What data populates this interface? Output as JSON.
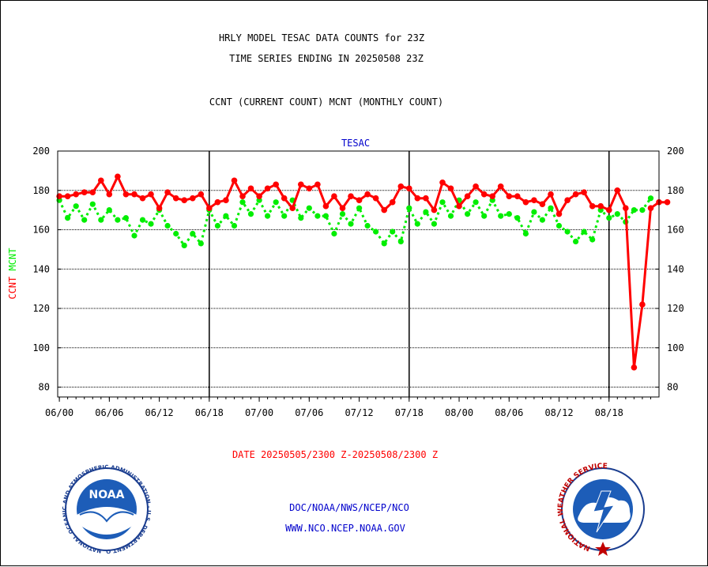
{
  "header": {
    "title_line1": "HRLY MODEL TESAC DATA COUNTS for 23Z",
    "title_line2": "TIME SERIES ENDING IN 20250508 23Z",
    "subtitle": "CCNT (CURRENT COUNT) MCNT (MONTHLY COUNT)"
  },
  "footer": {
    "date_range": "DATE 20250505/2300 Z-20250508/2300 Z",
    "org_line": "DOC/NOAA/NWS/NCEP/NCO",
    "url_line": "WWW.NCO.NCEP.NOAA.GOV",
    "noaa_logo_text": "NOAA",
    "noaa_ring_text": "NATIONAL OCEANIC AND ATMOSPHERIC ADMINISTRATION · U.S. DEPARTMENT OF COMMERCE",
    "nws_ring_text": "NATIONAL WEATHER SERVICE"
  },
  "colors": {
    "ccnt": "#ff0000",
    "mcnt": "#00ee00",
    "title": "#000000",
    "label_blue": "#0000cc",
    "date_red": "#ff0000"
  },
  "chart_data": {
    "type": "line",
    "title": "TESAC",
    "ylabel_ccnt": "CCNT",
    "ylabel_mcnt": "MCNT",
    "ylim": [
      75,
      200
    ],
    "yticks": [
      80,
      100,
      120,
      140,
      160,
      180,
      200
    ],
    "x_tick_labels": [
      "06/00",
      "06/06",
      "06/12",
      "06/18",
      "07/00",
      "07/06",
      "07/12",
      "07/18",
      "08/00",
      "08/06",
      "08/12",
      "08/18"
    ],
    "x_tick_hours": [
      0,
      6,
      12,
      18,
      24,
      30,
      36,
      42,
      48,
      54,
      60,
      66
    ],
    "day_separators_hours": [
      18,
      42,
      66
    ],
    "grid": true,
    "x_start_hour": -0.2,
    "x_end_hour": 72,
    "series": [
      {
        "name": "CCNT",
        "style": "solid",
        "values": [
          177,
          177,
          178,
          179,
          179,
          185,
          178,
          187,
          178,
          178,
          176,
          178,
          171,
          179,
          176,
          175,
          176,
          178,
          171,
          174,
          175,
          185,
          177,
          181,
          177,
          181,
          183,
          176,
          171,
          183,
          181,
          183,
          172,
          177,
          171,
          177,
          175,
          178,
          176,
          170,
          174,
          182,
          181,
          176,
          176,
          170,
          184,
          181,
          172,
          177,
          182,
          178,
          177,
          182,
          177,
          177,
          174,
          175,
          173,
          178,
          168,
          175,
          178,
          179,
          172,
          172,
          170,
          180,
          171,
          90,
          122,
          171,
          174,
          174
        ]
      },
      {
        "name": "MCNT",
        "style": "dotted",
        "values": [
          175,
          166,
          172,
          165,
          173,
          165,
          170,
          165,
          166,
          157,
          165,
          163,
          170,
          162,
          158,
          152,
          158,
          153,
          170,
          162,
          167,
          162,
          174,
          168,
          175,
          167,
          174,
          167,
          175,
          166,
          171,
          167,
          167,
          158,
          168,
          163,
          171,
          162,
          159,
          153,
          159,
          154,
          171,
          163,
          169,
          163,
          174,
          167,
          175,
          168,
          174,
          167,
          175,
          167,
          168,
          166,
          158,
          169,
          165,
          171,
          162,
          159,
          154,
          159,
          155,
          170,
          166,
          168,
          164,
          170,
          170,
          176
        ]
      }
    ]
  }
}
